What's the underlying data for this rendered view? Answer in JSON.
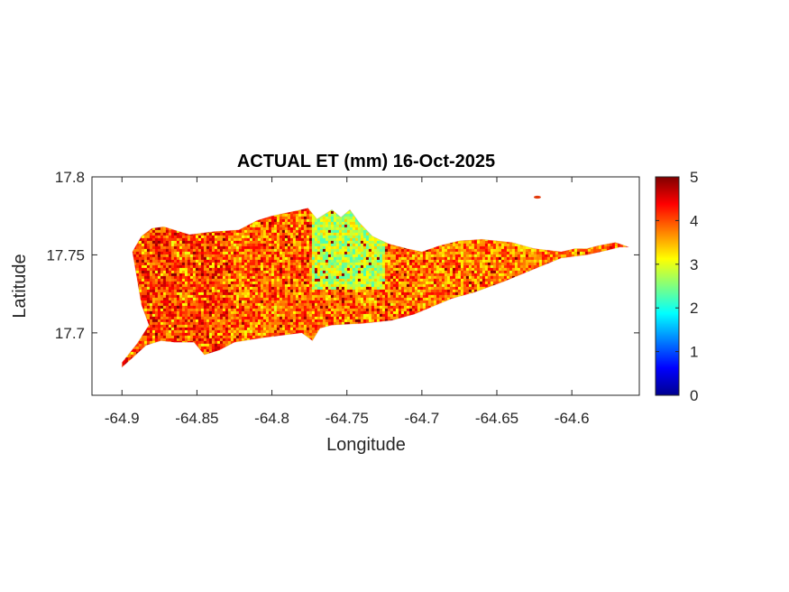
{
  "chart_data": {
    "type": "heatmap",
    "title": "ACTUAL ET (mm) 16-Oct-2025",
    "xlabel": "Longitude",
    "ylabel": "Latitude",
    "xlim": [
      -64.92,
      -64.555
    ],
    "ylim": [
      17.66,
      17.8
    ],
    "x_ticks": [
      -64.9,
      -64.85,
      -64.8,
      -64.75,
      -64.7,
      -64.65,
      -64.6
    ],
    "x_tick_labels": [
      "-64.9",
      "-64.85",
      "-64.8",
      "-64.75",
      "-64.7",
      "-64.65",
      "-64.6"
    ],
    "y_ticks": [
      17.7,
      17.75,
      17.8
    ],
    "y_tick_labels": [
      "17.7",
      "17.75",
      "17.8"
    ],
    "colorbar": {
      "colormap": "jet",
      "range": [
        0,
        5
      ],
      "ticks": [
        0,
        1,
        2,
        3,
        4,
        5
      ],
      "tick_labels": [
        "0",
        "1",
        "2",
        "3",
        "4",
        "5"
      ]
    },
    "grid": false,
    "island_outline_lonlat": [
      [
        -64.9,
        17.678
      ],
      [
        -64.893,
        17.684
      ],
      [
        -64.884,
        17.692
      ],
      [
        -64.874,
        17.695
      ],
      [
        -64.865,
        17.694
      ],
      [
        -64.852,
        17.694
      ],
      [
        -64.845,
        17.686
      ],
      [
        -64.835,
        17.689
      ],
      [
        -64.825,
        17.694
      ],
      [
        -64.805,
        17.697
      ],
      [
        -64.78,
        17.7
      ],
      [
        -64.773,
        17.695
      ],
      [
        -64.768,
        17.703
      ],
      [
        -64.76,
        17.705
      ],
      [
        -64.74,
        17.706
      ],
      [
        -64.72,
        17.708
      ],
      [
        -64.705,
        17.712
      ],
      [
        -64.68,
        17.722
      ],
      [
        -64.665,
        17.726
      ],
      [
        -64.645,
        17.733
      ],
      [
        -64.625,
        17.741
      ],
      [
        -64.607,
        17.748
      ],
      [
        -64.59,
        17.75
      ],
      [
        -64.576,
        17.753
      ],
      [
        -64.568,
        17.755
      ],
      [
        -64.562,
        17.755
      ],
      [
        -64.571,
        17.758
      ],
      [
        -64.582,
        17.756
      ],
      [
        -64.59,
        17.754
      ],
      [
        -64.598,
        17.754
      ],
      [
        -64.607,
        17.752
      ],
      [
        -64.625,
        17.754
      ],
      [
        -64.64,
        17.758
      ],
      [
        -64.66,
        17.76
      ],
      [
        -64.675,
        17.759
      ],
      [
        -64.688,
        17.756
      ],
      [
        -64.7,
        17.752
      ],
      [
        -64.71,
        17.754
      ],
      [
        -64.722,
        17.757
      ],
      [
        -64.733,
        17.762
      ],
      [
        -64.742,
        17.771
      ],
      [
        -64.748,
        17.779
      ],
      [
        -64.754,
        17.774
      ],
      [
        -64.76,
        17.779
      ],
      [
        -64.77,
        17.773
      ],
      [
        -64.776,
        17.78
      ],
      [
        -64.785,
        17.778
      ],
      [
        -64.8,
        17.775
      ],
      [
        -64.81,
        17.772
      ],
      [
        -64.822,
        17.766
      ],
      [
        -64.838,
        17.765
      ],
      [
        -64.855,
        17.763
      ],
      [
        -64.872,
        17.768
      ],
      [
        -64.88,
        17.767
      ],
      [
        -64.887,
        17.762
      ],
      [
        -64.893,
        17.752
      ],
      [
        -64.89,
        17.735
      ],
      [
        -64.887,
        17.718
      ],
      [
        -64.882,
        17.705
      ],
      [
        -64.89,
        17.693
      ],
      [
        -64.9,
        17.681
      ]
    ],
    "islet_lonlat": [
      -64.623,
      17.787
    ],
    "value_regions": [
      {
        "name": "west end",
        "lon_range": [
          -64.9,
          -64.83
        ],
        "typical_value": 4.1
      },
      {
        "name": "central north",
        "lon_range": [
          -64.77,
          -64.725
        ],
        "typical_value": 2.8
      },
      {
        "name": "central south",
        "lon_range": [
          -64.77,
          -64.7
        ],
        "typical_value": 3.9
      },
      {
        "name": "east end",
        "lon_range": [
          -64.7,
          -64.56
        ],
        "typical_value": 3.8
      }
    ]
  }
}
